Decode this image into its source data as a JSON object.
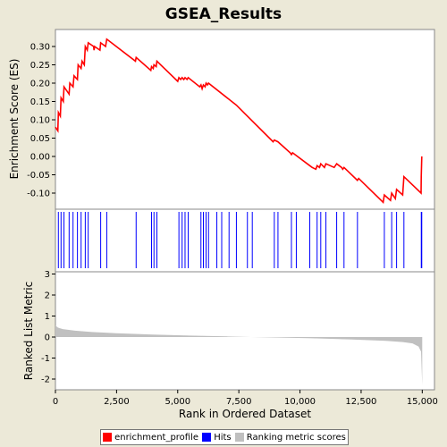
{
  "title": "GSEA_Results",
  "colors": {
    "background": "#ece9d8",
    "plot_bg": "#ffffff",
    "enrichment_line": "#ff0000",
    "hits": "#0000ff",
    "ranking_fill": "#c0c0c0"
  },
  "legend": {
    "items": [
      {
        "label": "enrichment_profile",
        "color": "#ff0000"
      },
      {
        "label": "Hits",
        "color": "#0000ff"
      },
      {
        "label": "Ranking metric scores",
        "color": "#c0c0c0"
      }
    ]
  },
  "chart_data": [
    {
      "type": "line",
      "name": "enrichment_profile",
      "ylabel": "Enrichment Score (ES)",
      "ylim": [
        -0.15,
        0.35
      ],
      "yticks": [
        0.3,
        0.25,
        0.2,
        0.15,
        0.1,
        0.05,
        0.0,
        -0.05,
        -0.1
      ],
      "ytick_labels": [
        "0.30",
        "0.25",
        "0.20",
        "0.15",
        "0.10",
        "0.05",
        "0.00",
        "-0.05",
        "-0.10"
      ],
      "points": [
        [
          0,
          0.08
        ],
        [
          100,
          0.07
        ],
        [
          120,
          0.12
        ],
        [
          200,
          0.11
        ],
        [
          230,
          0.16
        ],
        [
          320,
          0.15
        ],
        [
          350,
          0.19
        ],
        [
          560,
          0.17
        ],
        [
          590,
          0.2
        ],
        [
          720,
          0.19
        ],
        [
          760,
          0.22
        ],
        [
          900,
          0.21
        ],
        [
          930,
          0.25
        ],
        [
          1050,
          0.24
        ],
        [
          1090,
          0.26
        ],
        [
          1180,
          0.25
        ],
        [
          1220,
          0.3
        ],
        [
          1300,
          0.29
        ],
        [
          1340,
          0.31
        ],
        [
          1560,
          0.3
        ],
        [
          1580,
          0.29
        ],
        [
          1600,
          0.3
        ],
        [
          1820,
          0.29
        ],
        [
          1850,
          0.31
        ],
        [
          2050,
          0.3
        ],
        [
          2100,
          0.32
        ],
        [
          3270,
          0.26
        ],
        [
          3300,
          0.27
        ],
        [
          3900,
          0.235
        ],
        [
          3930,
          0.245
        ],
        [
          4000,
          0.24
        ],
        [
          4030,
          0.25
        ],
        [
          4120,
          0.245
        ],
        [
          4150,
          0.26
        ],
        [
          5000,
          0.205
        ],
        [
          5050,
          0.215
        ],
        [
          5120,
          0.21
        ],
        [
          5180,
          0.215
        ],
        [
          5250,
          0.21
        ],
        [
          5300,
          0.215
        ],
        [
          5380,
          0.21
        ],
        [
          5430,
          0.215
        ],
        [
          5900,
          0.19
        ],
        [
          5950,
          0.195
        ],
        [
          6000,
          0.185
        ],
        [
          6050,
          0.195
        ],
        [
          6120,
          0.19
        ],
        [
          6160,
          0.2
        ],
        [
          6220,
          0.195
        ],
        [
          6260,
          0.2
        ],
        [
          7400,
          0.14
        ],
        [
          8900,
          0.04
        ],
        [
          8950,
          0.045
        ],
        [
          9100,
          0.04
        ],
        [
          9600,
          0.01
        ],
        [
          9650,
          0.005
        ],
        [
          9700,
          0.01
        ],
        [
          10400,
          -0.025
        ],
        [
          10500,
          -0.03
        ],
        [
          10650,
          -0.035
        ],
        [
          10700,
          -0.025
        ],
        [
          10800,
          -0.03
        ],
        [
          10850,
          -0.02
        ],
        [
          11000,
          -0.03
        ],
        [
          11060,
          -0.02
        ],
        [
          11400,
          -0.03
        ],
        [
          11500,
          -0.02
        ],
        [
          11700,
          -0.03
        ],
        [
          11750,
          -0.035
        ],
        [
          11800,
          -0.03
        ],
        [
          12350,
          -0.065
        ],
        [
          12400,
          -0.06
        ],
        [
          13400,
          -0.125
        ],
        [
          13450,
          -0.105
        ],
        [
          13700,
          -0.12
        ],
        [
          13750,
          -0.1
        ],
        [
          13900,
          -0.115
        ],
        [
          13950,
          -0.09
        ],
        [
          14200,
          -0.105
        ],
        [
          14250,
          -0.055
        ],
        [
          14950,
          -0.1
        ],
        [
          14960,
          -0.055
        ],
        [
          14980,
          0.0
        ]
      ]
    },
    {
      "type": "scatter",
      "name": "Hits",
      "x": [
        120,
        230,
        350,
        560,
        720,
        900,
        1050,
        1220,
        1340,
        1850,
        2100,
        3300,
        3930,
        4030,
        4150,
        5050,
        5180,
        5300,
        5430,
        5950,
        6050,
        6160,
        6260,
        6600,
        6800,
        7100,
        7400,
        7850,
        8050,
        8950,
        9100,
        9650,
        9850,
        10400,
        10700,
        10850,
        11060,
        11500,
        11800,
        12350,
        13450,
        13750,
        13950,
        14250,
        14960,
        14980
      ]
    },
    {
      "type": "area",
      "name": "Ranking metric scores",
      "xlabel": "Rank in Ordered Dataset",
      "ylabel": "Ranked List Metric",
      "ylim": [
        -2.5,
        3
      ],
      "xlim": [
        0,
        15500
      ],
      "xticks": [
        0,
        2500,
        5000,
        7500,
        10000,
        12500,
        15000
      ],
      "xtick_labels": [
        "0",
        "2,500",
        "5,000",
        "7,500",
        "10,000",
        "12,500",
        "15,000"
      ],
      "yticks": [
        3,
        2,
        1,
        0,
        -1,
        -2
      ],
      "ytick_labels": [
        "3",
        "2",
        "1",
        "0",
        "-1",
        "-2"
      ],
      "points": [
        [
          0,
          0.55
        ],
        [
          100,
          0.45
        ],
        [
          300,
          0.38
        ],
        [
          800,
          0.3
        ],
        [
          1500,
          0.24
        ],
        [
          2500,
          0.18
        ],
        [
          4000,
          0.12
        ],
        [
          5500,
          0.07
        ],
        [
          7000,
          0.03
        ],
        [
          8000,
          0.0
        ],
        [
          9000,
          -0.02
        ],
        [
          10500,
          -0.06
        ],
        [
          12000,
          -0.11
        ],
        [
          13500,
          -0.18
        ],
        [
          14200,
          -0.24
        ],
        [
          14600,
          -0.3
        ],
        [
          14850,
          -0.45
        ],
        [
          14950,
          -0.7
        ],
        [
          15000,
          -2.3
        ]
      ]
    }
  ]
}
